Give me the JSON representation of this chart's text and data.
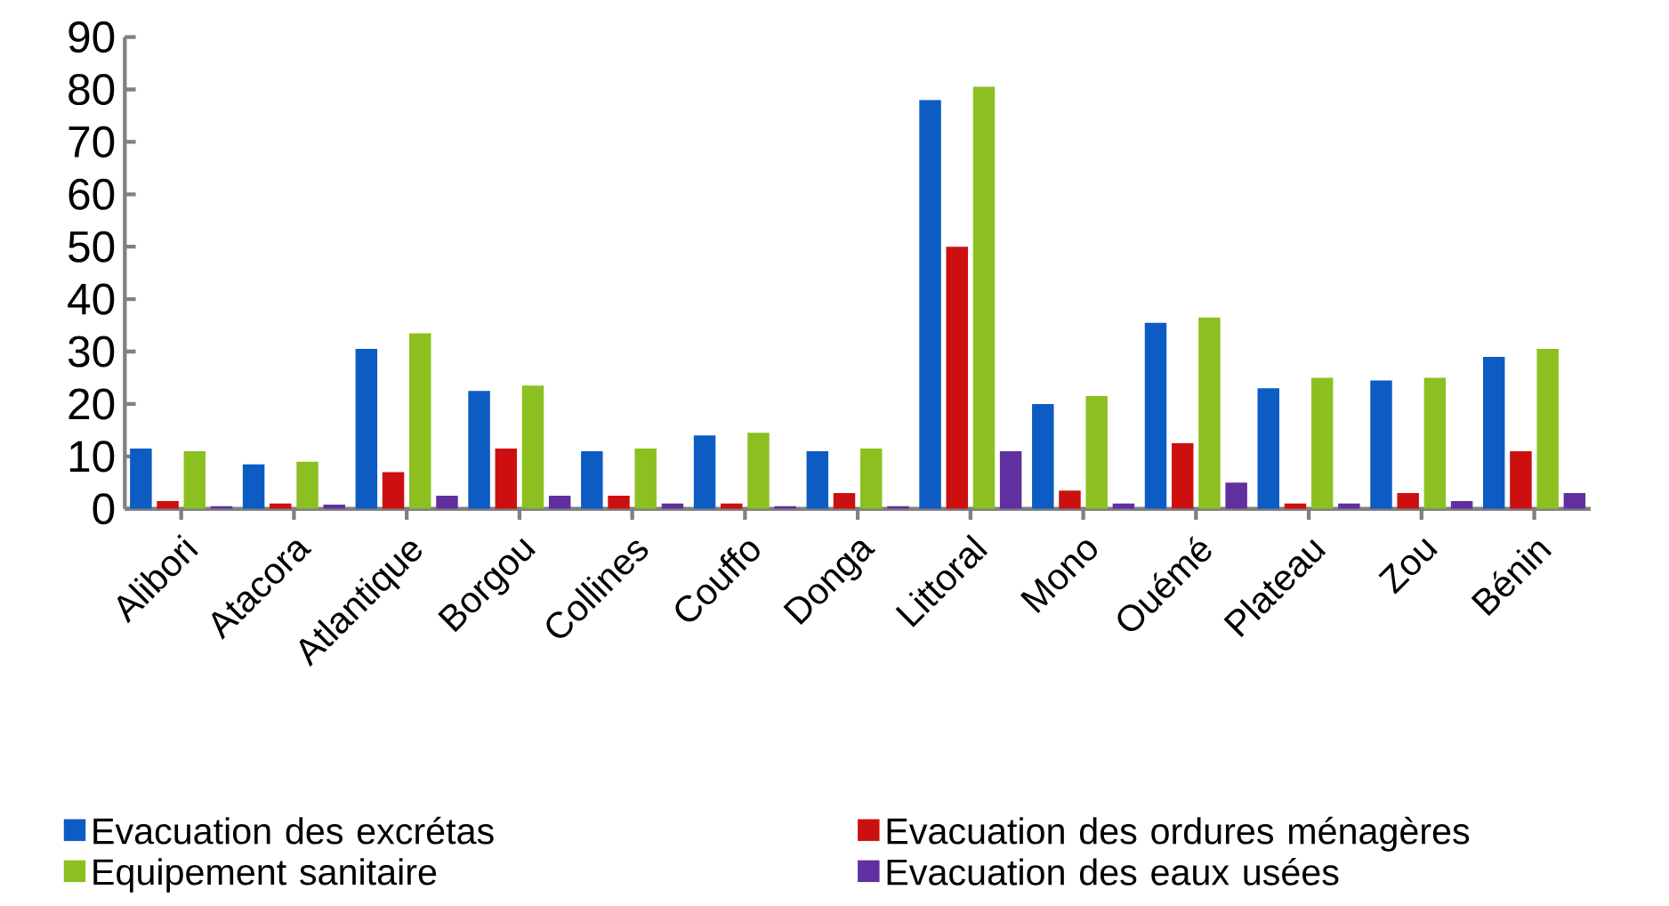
{
  "chart_data": {
    "type": "bar",
    "categories": [
      "Alibori",
      "Atacora",
      "Atlantique",
      "Borgou",
      "Collines",
      "Couffo",
      "Donga",
      "Littoral",
      "Mono",
      "Ouémé",
      "Plateau",
      "Zou",
      "Bénin"
    ],
    "series": [
      {
        "name": "Evacuation des excrétas",
        "color": "#0c5cc4",
        "values": [
          11.5,
          8.5,
          30.5,
          22.5,
          11,
          14,
          11,
          78,
          20,
          35.5,
          23,
          24.5,
          29
        ]
      },
      {
        "name": "Evacuation des ordures ménagères",
        "color": "#cc1010",
        "values": [
          1.5,
          1,
          7,
          11.5,
          2.5,
          1,
          3,
          50,
          3.5,
          12.5,
          1,
          3,
          11
        ]
      },
      {
        "name": "Equipement sanitaire",
        "color": "#8cc020",
        "values": [
          11,
          9,
          33.5,
          23.5,
          11.5,
          14.5,
          11.5,
          80.5,
          21.5,
          36.5,
          25,
          25,
          30.5
        ]
      },
      {
        "name": "Evacuation des eaux usées",
        "color": "#6030a0",
        "values": [
          0.5,
          0.8,
          2.5,
          2.5,
          1,
          0.5,
          0.5,
          11,
          1,
          5,
          1,
          1.5,
          3
        ]
      }
    ],
    "ylim": [
      0,
      90
    ],
    "yticks": [
      0,
      10,
      20,
      30,
      40,
      50,
      60,
      70,
      80,
      90
    ],
    "grid": false,
    "legend": "bottom"
  }
}
